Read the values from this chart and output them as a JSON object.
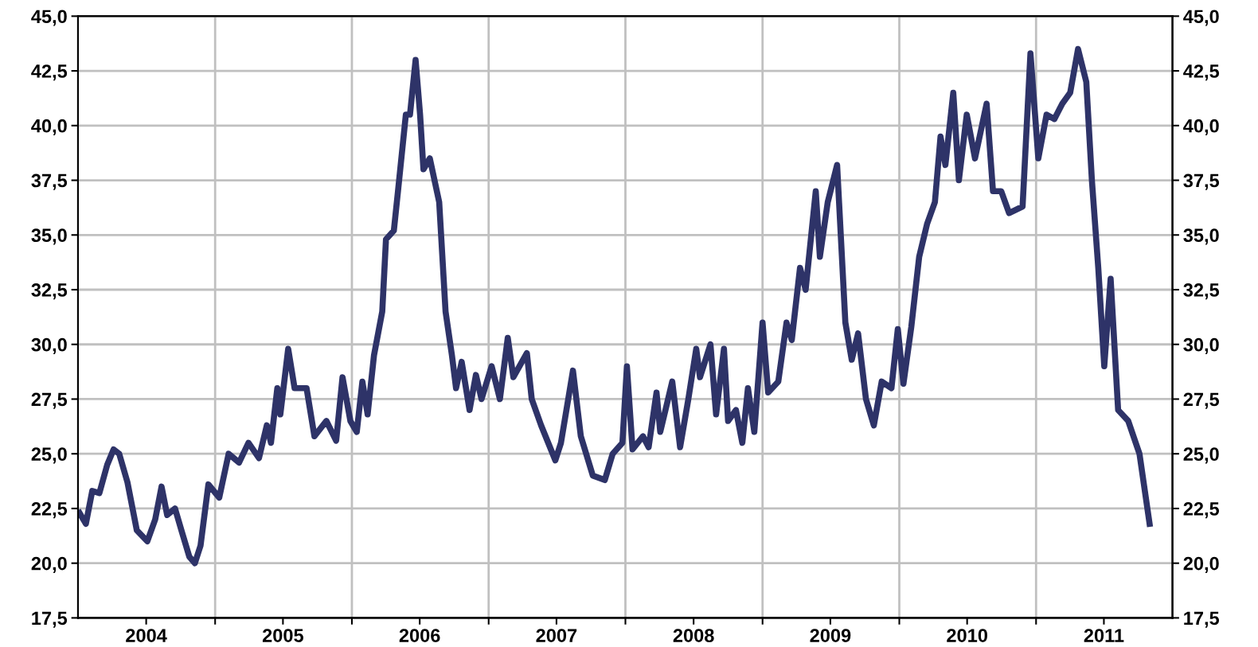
{
  "chart_data": {
    "type": "line",
    "xlim": [
      "2004-01-01",
      "2011-12-31"
    ],
    "xticks": [
      {
        "value": "2004-07-01",
        "label": "2004"
      },
      {
        "value": "2005-01-01",
        "label": null
      },
      {
        "value": "2005-07-01",
        "label": "2005"
      },
      {
        "value": "2006-01-01",
        "label": null
      },
      {
        "value": "2006-07-01",
        "label": "2006"
      },
      {
        "value": "2007-01-01",
        "label": null
      },
      {
        "value": "2007-07-01",
        "label": "2007"
      },
      {
        "value": "2008-01-01",
        "label": null
      },
      {
        "value": "2008-07-01",
        "label": "2008"
      },
      {
        "value": "2009-01-01",
        "label": null
      },
      {
        "value": "2009-07-01",
        "label": "2009"
      },
      {
        "value": "2010-01-01",
        "label": null
      },
      {
        "value": "2010-07-01",
        "label": "2010"
      },
      {
        "value": "2011-01-01",
        "label": null
      },
      {
        "value": "2011-07-01",
        "label": "2011"
      }
    ],
    "ylim": [
      17.5,
      45.0
    ],
    "yticks": [
      {
        "value": 17.5,
        "label": "17,5"
      },
      {
        "value": 20.0,
        "label": "20,0"
      },
      {
        "value": 22.5,
        "label": "22,5"
      },
      {
        "value": 25.0,
        "label": "25,0"
      },
      {
        "value": 27.5,
        "label": "27,5"
      },
      {
        "value": 30.0,
        "label": "30,0"
      },
      {
        "value": 32.5,
        "label": "32,5"
      },
      {
        "value": 35.0,
        "label": "35,0"
      },
      {
        "value": 37.5,
        "label": "37,5"
      },
      {
        "value": 40.0,
        "label": "40,0"
      },
      {
        "value": 42.5,
        "label": "42,5"
      },
      {
        "value": 45.0,
        "label": "45,0"
      }
    ],
    "y2lim": [
      17.5,
      45.0
    ],
    "y2ticks": [
      {
        "value": 17.5,
        "label": "17,5"
      },
      {
        "value": 20.0,
        "label": "20,0"
      },
      {
        "value": 22.5,
        "label": "22,5"
      },
      {
        "value": 25.0,
        "label": "25,0"
      },
      {
        "value": 27.5,
        "label": "27,5"
      },
      {
        "value": 30.0,
        "label": "30,0"
      },
      {
        "value": 32.5,
        "label": "32,5"
      },
      {
        "value": 35.0,
        "label": "35,0"
      },
      {
        "value": 37.5,
        "label": "37,5"
      },
      {
        "value": 40.0,
        "label": "40,0"
      },
      {
        "value": 42.5,
        "label": "42,5"
      },
      {
        "value": 45.0,
        "label": "45,0"
      }
    ],
    "grid": true,
    "marker": "none",
    "line_style": "solid",
    "legend": false,
    "series": [
      {
        "color": "#2e3368",
        "x": [
          "2004-01-05",
          "2004-01-22",
          "2004-02-08",
          "2004-02-27",
          "2004-03-19",
          "2004-04-05",
          "2004-04-20",
          "2004-05-12",
          "2004-06-06",
          "2004-07-04",
          "2004-07-25",
          "2004-08-11",
          "2004-08-26",
          "2004-09-16",
          "2004-10-03",
          "2004-10-24",
          "2004-11-08",
          "2004-11-23",
          "2004-12-14",
          "2005-01-12",
          "2005-02-06",
          "2005-03-06",
          "2005-03-31",
          "2005-04-28",
          "2005-05-19",
          "2005-05-30",
          "2005-06-16",
          "2005-06-24",
          "2005-07-15",
          "2005-08-01",
          "2005-09-02",
          "2005-09-23",
          "2005-10-25",
          "2005-11-20",
          "2005-12-07",
          "2005-12-28",
          "2006-01-14",
          "2006-01-29",
          "2006-02-12",
          "2006-03-01",
          "2006-03-23",
          "2006-04-02",
          "2006-04-23",
          "2006-05-04",
          "2006-05-25",
          "2006-06-05",
          "2006-06-20",
          "2006-07-02",
          "2006-07-11",
          "2006-07-28",
          "2006-08-22",
          "2006-09-08",
          "2006-09-25",
          "2006-10-06",
          "2006-10-21",
          "2006-11-11",
          "2006-11-28",
          "2006-12-13",
          "2007-01-09",
          "2007-01-31",
          "2007-02-21",
          "2007-03-08",
          "2007-04-13",
          "2007-04-26",
          "2007-05-21",
          "2007-06-28",
          "2007-07-13",
          "2007-08-14",
          "2007-09-04",
          "2007-10-06",
          "2007-11-07",
          "2007-11-28",
          "2007-12-24",
          "2008-01-05",
          "2008-01-20",
          "2008-02-17",
          "2008-03-03",
          "2008-03-24",
          "2008-04-03",
          "2008-05-05",
          "2008-05-26",
          "2008-06-17",
          "2008-07-08",
          "2008-07-18",
          "2008-08-15",
          "2008-08-30",
          "2008-09-20",
          "2008-10-01",
          "2008-10-22",
          "2008-11-08",
          "2008-11-23",
          "2008-12-10",
          "2009-01-01",
          "2009-01-16",
          "2009-02-12",
          "2009-03-06",
          "2009-03-20",
          "2009-04-11",
          "2009-04-26",
          "2009-05-23",
          "2009-06-03",
          "2009-06-24",
          "2009-07-19",
          "2009-08-10",
          "2009-08-27",
          "2009-09-13",
          "2009-10-04",
          "2009-10-25",
          "2009-11-15",
          "2009-12-11",
          "2009-12-28",
          "2010-01-12",
          "2010-02-02",
          "2010-02-23",
          "2010-03-16",
          "2010-04-06",
          "2010-04-21",
          "2010-05-04",
          "2010-05-25",
          "2010-06-09",
          "2010-06-30",
          "2010-07-22",
          "2010-08-22",
          "2010-09-08",
          "2010-09-30",
          "2010-10-21",
          "2010-11-26",
          "2010-12-17",
          "2011-01-07",
          "2011-01-29",
          "2011-02-19",
          "2011-03-12",
          "2011-04-02",
          "2011-04-23",
          "2011-05-15",
          "2011-05-30",
          "2011-06-16",
          "2011-07-02",
          "2011-07-19",
          "2011-08-08",
          "2011-09-04",
          "2011-10-04",
          "2011-10-31"
        ],
        "values": [
          22.3,
          21.8,
          23.3,
          23.2,
          24.5,
          25.2,
          25.0,
          23.7,
          21.5,
          21.0,
          22.0,
          23.5,
          22.2,
          22.5,
          21.5,
          20.3,
          20.0,
          20.8,
          23.6,
          23.0,
          25.0,
          24.6,
          25.5,
          24.8,
          26.3,
          25.5,
          28.0,
          26.8,
          29.8,
          28.0,
          28.0,
          25.8,
          26.5,
          25.6,
          28.5,
          26.5,
          26.0,
          28.3,
          26.8,
          29.5,
          31.5,
          34.8,
          35.2,
          37.0,
          40.5,
          40.5,
          43.0,
          40.5,
          38.0,
          38.5,
          36.5,
          31.5,
          29.5,
          28.0,
          29.2,
          27.0,
          28.6,
          27.5,
          29.0,
          27.5,
          30.3,
          28.5,
          29.6,
          27.5,
          26.3,
          24.7,
          25.5,
          28.8,
          25.8,
          24.0,
          23.8,
          25.0,
          25.5,
          29.0,
          25.2,
          25.8,
          25.3,
          27.8,
          26.0,
          28.3,
          25.3,
          27.5,
          29.8,
          28.5,
          30.0,
          26.8,
          29.8,
          26.5,
          27.0,
          25.5,
          28.0,
          26.0,
          31.0,
          27.8,
          28.3,
          31.0,
          30.2,
          33.5,
          32.5,
          37.0,
          34.0,
          36.5,
          38.2,
          31.0,
          29.3,
          30.5,
          27.5,
          26.3,
          28.3,
          28.0,
          30.7,
          28.2,
          30.8,
          34.0,
          35.5,
          36.5,
          39.5,
          38.2,
          41.5,
          37.5,
          40.5,
          38.5,
          41.0,
          37.0,
          37.0,
          36.0,
          36.3,
          43.3,
          38.5,
          40.5,
          40.3,
          41.0,
          41.5,
          43.5,
          42.0,
          37.5,
          33.5,
          29.0,
          33.0,
          27.0,
          26.5,
          25.0,
          21.8
        ]
      }
    ]
  }
}
